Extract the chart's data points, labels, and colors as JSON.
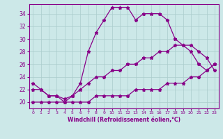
{
  "xlabel": "Windchill (Refroidissement éolien,°C)",
  "bg_color": "#cce8e8",
  "line_color": "#880088",
  "grid_color": "#aacccc",
  "x_ticks": [
    0,
    1,
    2,
    3,
    4,
    5,
    6,
    7,
    8,
    9,
    10,
    11,
    12,
    13,
    14,
    15,
    16,
    17,
    18,
    19,
    20,
    21,
    22,
    23
  ],
  "y_ticks": [
    20,
    22,
    24,
    26,
    28,
    30,
    32,
    34
  ],
  "ylim": [
    19.0,
    35.5
  ],
  "xlim": [
    -0.5,
    23.5
  ],
  "line1_x": [
    0,
    1,
    2,
    3,
    4,
    5,
    6,
    7,
    8,
    9,
    10,
    11,
    12,
    13,
    14,
    15,
    16,
    17,
    18,
    19,
    20,
    21,
    22,
    23
  ],
  "line1_y": [
    23,
    22,
    21,
    21,
    20,
    21,
    23,
    28,
    31,
    33,
    35,
    35,
    35,
    33,
    34,
    34,
    34,
    33,
    30,
    29,
    28,
    26,
    25,
    26
  ],
  "line2_x": [
    0,
    1,
    2,
    3,
    4,
    5,
    6,
    7,
    8,
    9,
    10,
    11,
    12,
    13,
    14,
    15,
    16,
    17,
    18,
    19,
    20,
    21,
    22,
    23
  ],
  "line2_y": [
    20,
    20,
    20,
    20,
    20,
    20,
    20,
    20,
    21,
    21,
    21,
    21,
    21,
    22,
    22,
    22,
    22,
    23,
    23,
    23,
    24,
    24,
    25,
    26
  ],
  "line3_x": [
    0,
    1,
    2,
    3,
    4,
    5,
    6,
    7,
    8,
    9,
    10,
    11,
    12,
    13,
    14,
    15,
    16,
    17,
    18,
    19,
    20,
    21,
    22,
    23
  ],
  "line3_y": [
    22,
    22,
    21,
    21,
    20.5,
    21,
    22,
    23,
    24,
    24,
    25,
    25,
    26,
    26,
    27,
    27,
    28,
    28,
    29,
    29,
    29,
    28,
    27,
    25
  ]
}
